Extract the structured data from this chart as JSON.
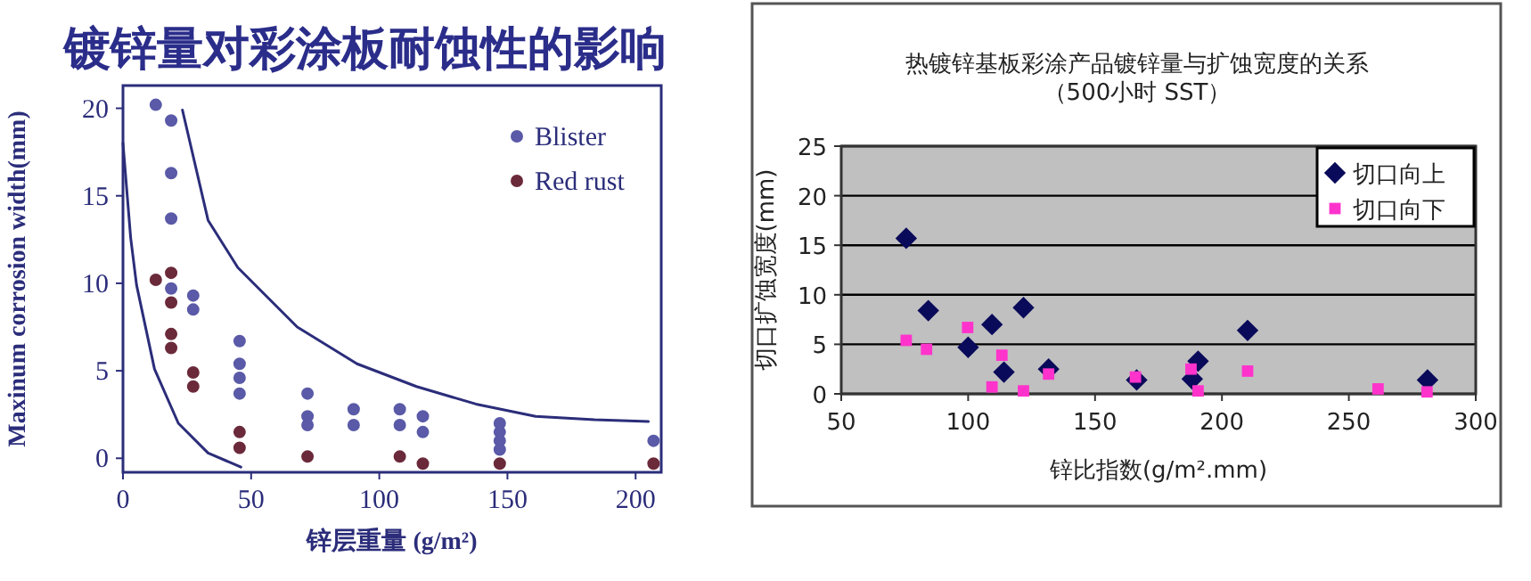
{
  "chart_data": [
    {
      "type": "scatter",
      "title": "镀锌量对彩涂板耐蚀性的影响",
      "xlabel": "锌层重量 (g/m²)",
      "ylabel": "Maxinum corrosion width(mm)",
      "xlim": [
        0,
        210
      ],
      "ylim": [
        -0.8,
        21.3
      ],
      "xticks": [
        0,
        50,
        100,
        150,
        200
      ],
      "yticks": [
        0,
        5,
        10,
        15,
        20
      ],
      "grid": false,
      "legend": "top right",
      "series": [
        {
          "name": "Blister",
          "color": "#5a5aa8",
          "marker": "circle",
          "x": [
            12.8,
            18.8,
            18.8,
            18.8,
            18.8,
            27.4,
            27.4,
            45.5,
            45.5,
            45.5,
            45.5,
            72,
            72,
            72,
            90,
            90,
            108,
            108,
            117,
            117,
            147,
            147,
            147,
            147,
            207
          ],
          "values": [
            20.2,
            19.3,
            16.3,
            13.7,
            9.7,
            9.3,
            8.5,
            6.7,
            5.4,
            4.6,
            3.7,
            3.7,
            2.4,
            1.9,
            2.8,
            1.9,
            2.8,
            1.9,
            2.4,
            1.5,
            2.0,
            1.5,
            1.0,
            0.5,
            1.0
          ]
        },
        {
          "name": "Red rust",
          "color": "#6b2a3a",
          "marker": "circle",
          "x": [
            12.8,
            18.8,
            18.8,
            18.8,
            18.8,
            27.4,
            27.4,
            45.5,
            45.5,
            72,
            108,
            117,
            147,
            207
          ],
          "values": [
            10.2,
            10.6,
            8.9,
            7.1,
            6.3,
            4.9,
            4.1,
            1.5,
            0.6,
            0.1,
            0.1,
            -0.3,
            -0.3,
            -0.3
          ]
        },
        {
          "type": "line",
          "color": "#2b2d7a",
          "marker": "none",
          "x": [
            0,
            3,
            5.3,
            12.3,
            21.6,
            33.2,
            46
          ],
          "values": [
            18.0,
            12.6,
            9.9,
            5.1,
            2.0,
            0.3,
            -0.5
          ]
        },
        {
          "type": "line",
          "color": "#2b2d7a",
          "marker": "none",
          "x": [
            23.2,
            33.2,
            44.8,
            68,
            91.3,
            114.5,
            137.7,
            161,
            184,
            205
          ],
          "values": [
            19.9,
            13.6,
            10.9,
            7.5,
            5.4,
            4.1,
            3.1,
            2.4,
            2.2,
            2.1
          ]
        }
      ]
    },
    {
      "type": "scatter",
      "title": "热镀锌基板彩涂产品镀锌量与扩蚀宽度的关系",
      "subtitle": "（500小时 SST）",
      "xlabel": "锌比指数(g/m².mm)",
      "ylabel": "切口扩蚀宽度(mm)",
      "xlim": [
        50,
        300
      ],
      "ylim": [
        0,
        25
      ],
      "xticks": [
        50,
        100,
        150,
        200,
        250,
        300
      ],
      "yticks": [
        0,
        5,
        10,
        15,
        20,
        25
      ],
      "grid": "y",
      "legend": "top right",
      "series": [
        {
          "name": "切口向上",
          "color": "#0a0a5a",
          "marker": "diamond",
          "x": [
            75.6,
            84.3,
            121.8,
            109.4,
            100,
            114.1,
            131.7,
            166.4,
            188.3,
            190.6,
            210.1,
            281
          ],
          "values": [
            15.7,
            8.4,
            8.7,
            7.0,
            4.7,
            2.2,
            2.5,
            1.4,
            1.5,
            3.3,
            6.4,
            1.4
          ]
        },
        {
          "name": "切口向下",
          "color": "#ff33cc",
          "marker": "square",
          "x": [
            75.6,
            83.6,
            99.8,
            113.3,
            109.4,
            121.8,
            131.7,
            165.9,
            187.8,
            190.6,
            210.1,
            261.5,
            280.8
          ],
          "values": [
            5.4,
            4.5,
            6.7,
            3.9,
            0.7,
            0.3,
            2.0,
            1.7,
            2.5,
            0.3,
            2.3,
            0.5,
            0.2
          ]
        }
      ]
    }
  ]
}
